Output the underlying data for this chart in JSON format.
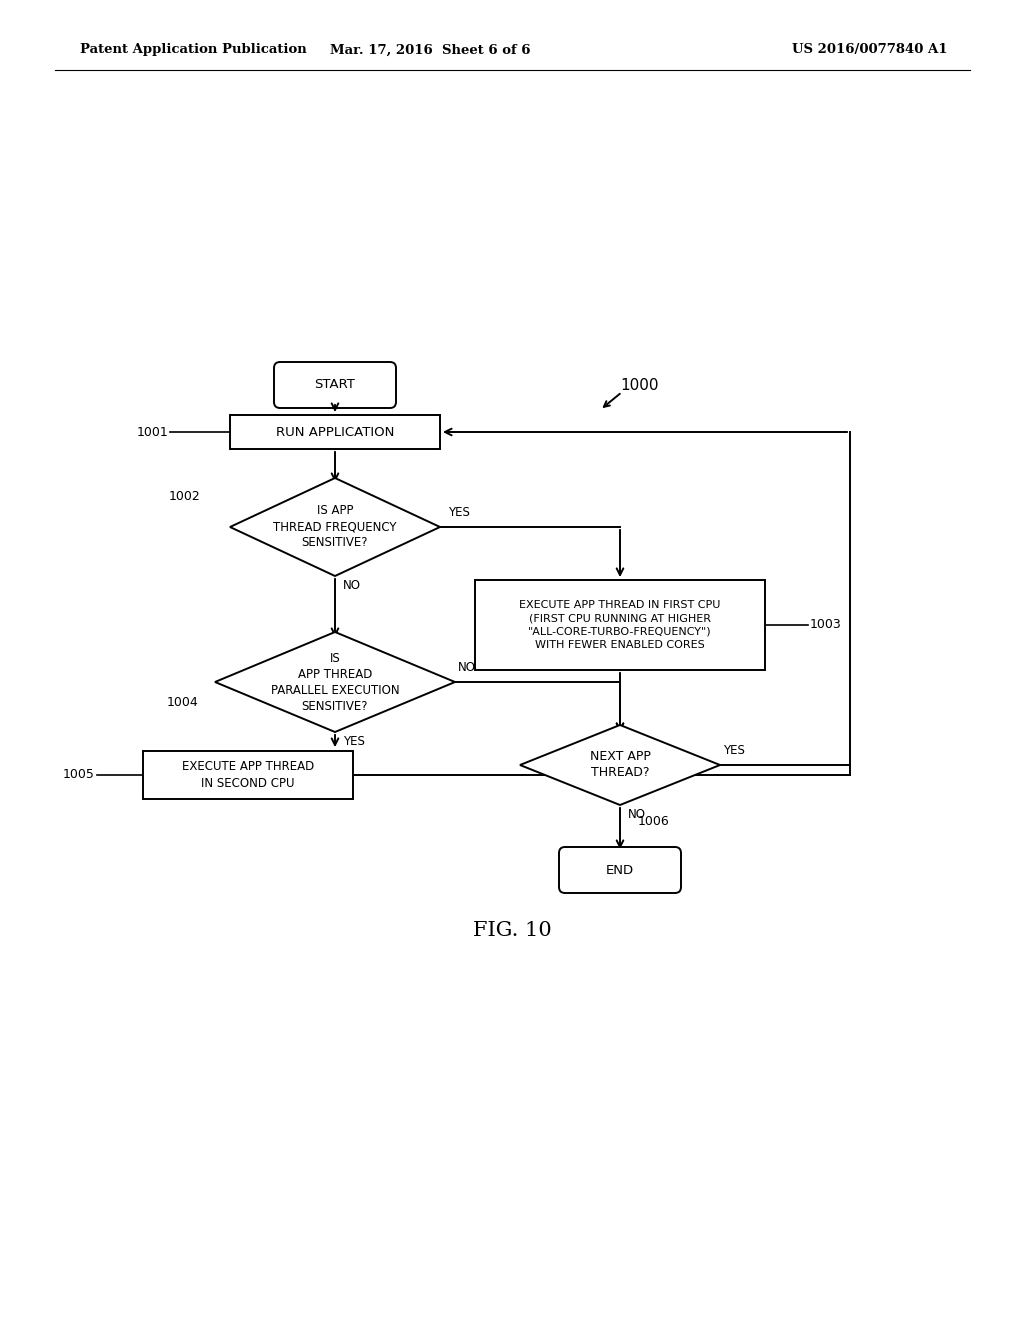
{
  "header_left": "Patent Application Publication",
  "header_center": "Mar. 17, 2016  Sheet 6 of 6",
  "header_right": "US 2016/0077840 A1",
  "fig_label": "FIG. 10",
  "diagram_label": "1000",
  "background_color": "#ffffff",
  "lw": 1.4
}
